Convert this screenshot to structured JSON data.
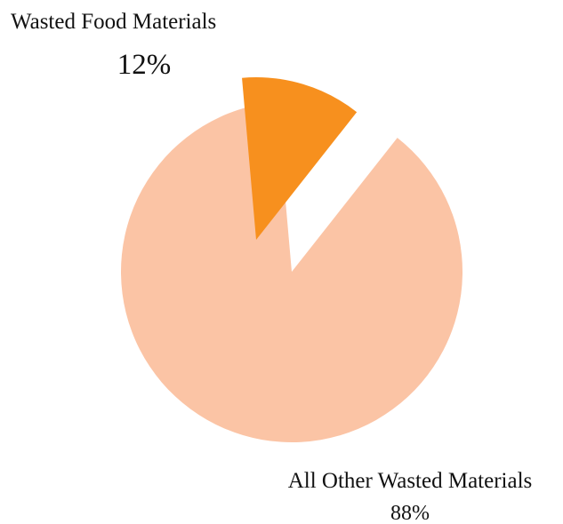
{
  "chart_data": {
    "type": "pie",
    "title": "",
    "slices": [
      {
        "label": "Wasted Food Materials",
        "value": 12,
        "value_label": "12%",
        "color": "#f7901e",
        "exploded": true
      },
      {
        "label": "All Other Wasted Materials",
        "value": 88,
        "value_label": "88%",
        "color": "#fbc4a5",
        "exploded": false
      }
    ],
    "legend": "none"
  }
}
